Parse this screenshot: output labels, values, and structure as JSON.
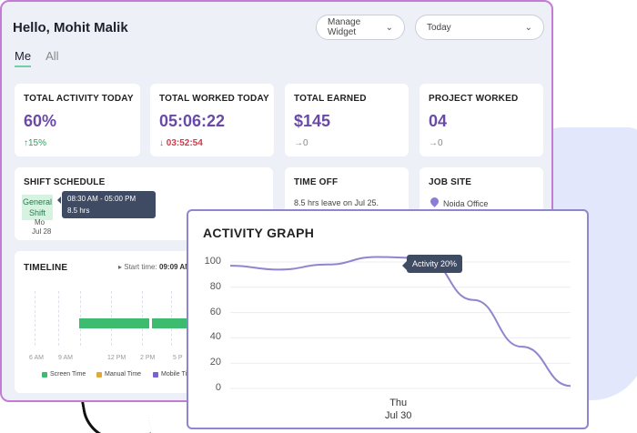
{
  "header": {
    "greeting": "Hello, Mohit Malik",
    "manage_widget": "Manage Widget",
    "date_range": "Today"
  },
  "tabs": [
    {
      "label": "Me",
      "active": true
    },
    {
      "label": "All",
      "active": false
    }
  ],
  "stats": {
    "activity": {
      "label": "TOTAL ACTIVITY TODAY",
      "value": "60%",
      "delta": "↑15%"
    },
    "worked": {
      "label": "TOTAL WORKED TODAY",
      "value": "05:06:22",
      "delta": "↓ 03:52:54"
    },
    "earned": {
      "label": "TOTAL EARNED",
      "value": "$145",
      "delta": "→0"
    },
    "projects": {
      "label": "PROJECT WORKED",
      "value": "04",
      "delta": "→0"
    }
  },
  "shift": {
    "label": "SHIFT SCHEDULE",
    "shift_name": "General Shift",
    "tooltip_time": "08:30 AM - 05:00 PM",
    "tooltip_hours": "8.5 hrs",
    "day": "Mo",
    "date": "Jul 28"
  },
  "time_off": {
    "label": "TIME OFF",
    "text": "8.5 hrs leave on Jul 25."
  },
  "job_site": {
    "label": "JOB SITE",
    "location": "Noida Office"
  },
  "timeline": {
    "label": "TIMELINE",
    "start_label": "▸ Start time:",
    "start_value": "09:09 AM",
    "ticks": [
      "6 AM",
      "9 AM",
      "12 PM",
      "2 PM",
      "5 P"
    ],
    "legend": [
      {
        "label": "Screen Time",
        "color": "#3dbb6f"
      },
      {
        "label": "Manual Time",
        "color": "#e0a93a"
      },
      {
        "label": "Mobile Ti",
        "color": "#7b62d1"
      }
    ]
  },
  "chart_data": {
    "type": "line",
    "title": "ACTIVITY GRAPH",
    "x": [
      "",
      "",
      "",
      "",
      "",
      "",
      "",
      ""
    ],
    "x_label_day": "Thu",
    "x_label_date": "Jul 30",
    "ylim": [
      0,
      100
    ],
    "yticks": [
      0,
      20,
      40,
      60,
      80,
      100
    ],
    "series": [
      {
        "values": [
          97,
          94,
          98,
          104,
          103,
          70,
          33,
          2
        ]
      }
    ],
    "annotation": "Activity 20%",
    "line_color": "#8e86cf"
  }
}
